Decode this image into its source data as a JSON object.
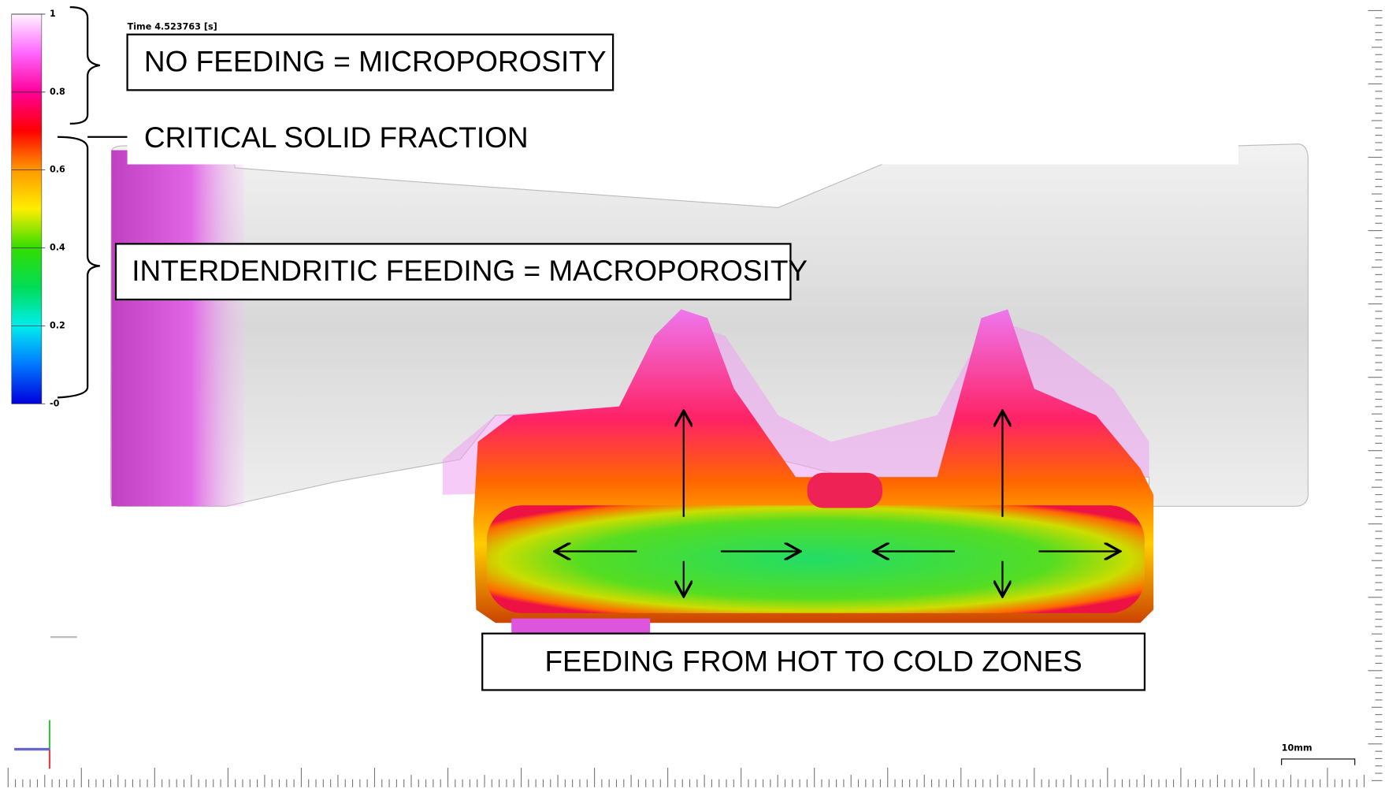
{
  "time_label": "Time 4.523763 [s]",
  "colorbar": {
    "ticks": [
      "1",
      "0.8",
      "0.6",
      "0.4",
      "0.2",
      "-0"
    ]
  },
  "annotations": {
    "no_feeding": "NO FEEDING = MICROPOROSITY",
    "critical": "CRITICAL SOLID FRACTION",
    "interdendritic": "INTERDENDRITIC FEEDING = MACROPOROSITY",
    "hot_to_cold": "FEEDING FROM HOT TO COLD ZONES"
  },
  "scale_bar": "10mm"
}
